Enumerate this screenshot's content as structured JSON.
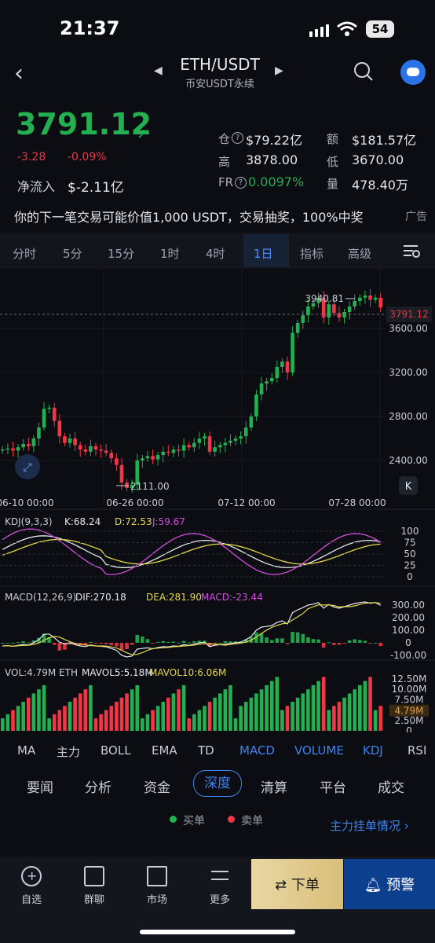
{
  "status_bar": {
    "time": "21:37",
    "battery": "54"
  },
  "header": {
    "pair": "ETH/USDT",
    "subtitle": "币安USDT永续"
  },
  "price": {
    "last": "3791.12",
    "change": "-3.28",
    "change_pct": "-0.09%",
    "net_inflow_label": "净流入",
    "net_inflow_value": "$-2.11亿"
  },
  "stats": {
    "oi_label": "仓",
    "oi_value": "$79.22亿",
    "vol_label": "额",
    "vol_value": "$181.57亿",
    "high_label": "高",
    "high_value": "3878.00",
    "low_label": "低",
    "low_value": "3670.00",
    "fr_label": "FR",
    "fr_value": "0.0097%",
    "qty_label": "量",
    "qty_value": "478.40万"
  },
  "banner": {
    "text": "你的下一笔交易可能价值1,000 USDT，交易抽奖，100%中奖",
    "ad": "广告"
  },
  "interval_tabs": [
    "分时",
    "5分",
    "15分",
    "1时",
    "4时",
    "1日",
    "指标",
    "高级"
  ],
  "colors": {
    "up": "#22b050",
    "down": "#f23645",
    "accent": "#3e84f0"
  },
  "chart_data": [
    {
      "type": "candlestick",
      "title": "",
      "x_ticks": [
        "06-10 00:00",
        "06-26 00:00",
        "07-12 00:00",
        "07-28 00:00"
      ],
      "y_ticks": [
        "3600.00",
        "3200.00",
        "2800.00",
        "2400.00"
      ],
      "ylim": [
        2000,
        4000
      ],
      "annotations": {
        "high": "3940.81",
        "low": "2111.00",
        "last": "3791.12"
      },
      "closes": [
        2500,
        2510,
        2490,
        2520,
        2550,
        2530,
        2600,
        2700,
        2870,
        2880,
        2760,
        2620,
        2560,
        2600,
        2540,
        2500,
        2480,
        2530,
        2500,
        2490,
        2470,
        2420,
        2360,
        2200,
        2150,
        2180,
        2400,
        2420,
        2440,
        2410,
        2450,
        2480,
        2470,
        2500,
        2490,
        2540,
        2520,
        2560,
        2600,
        2620,
        2480,
        2520,
        2540,
        2560,
        2580,
        2600,
        2620,
        2700,
        2800,
        3000,
        3100,
        3120,
        3150,
        3250,
        3300,
        3200,
        3560,
        3650,
        3720,
        3800,
        3830,
        3880,
        3700,
        3820,
        3740,
        3700,
        3750,
        3800,
        3850,
        3880,
        3900,
        3860,
        3880,
        3791
      ]
    },
    {
      "type": "line",
      "title": "KDJ(9,3,3)",
      "series": [
        {
          "name": "K",
          "label": "K:68.24"
        },
        {
          "name": "D",
          "label": "D:72.53"
        },
        {
          "name": "J",
          "label": "J:59.67"
        }
      ],
      "y_ticks": [
        "100",
        "75",
        "50",
        "25",
        "0"
      ]
    },
    {
      "type": "bar",
      "title": "MACD(12,26,9)",
      "series": [
        {
          "name": "DIF",
          "label": "DIF:270.18"
        },
        {
          "name": "DEA",
          "label": "DEA:281.90"
        },
        {
          "name": "MACD",
          "label": "MACD:-23.44"
        }
      ],
      "y_ticks": [
        "300.00",
        "200.00",
        "100.00",
        "0",
        "-100.00"
      ]
    },
    {
      "type": "bar",
      "title": "VOL:4.79M ETH",
      "series": [
        {
          "name": "MAVOL5",
          "label": "MAVOL5:5.18M"
        },
        {
          "name": "MAVOL10",
          "label": "MAVOL10:6.06M"
        }
      ],
      "y_ticks": [
        "12.50M",
        "10.00M",
        "7.50M",
        "4.79M",
        "2.50M",
        "0"
      ]
    }
  ],
  "indicator_tabs": [
    "MA",
    "主力",
    "BOLL",
    "EMA",
    "TD",
    "MACD",
    "VOLUME",
    "KDJ",
    "RSI"
  ],
  "section_tabs": [
    "要闻",
    "分析",
    "资金",
    "深度",
    "清算",
    "平台",
    "成交"
  ],
  "depth": {
    "buy_label": "买单",
    "sell_label": "卖单",
    "link": "主力挂单情况 ›"
  },
  "bottom_nav": [
    {
      "label": "自选",
      "icon": "plus-circle-icon"
    },
    {
      "label": "群聊",
      "icon": "chat-icon"
    },
    {
      "label": "市场",
      "icon": "chart-screen-icon"
    },
    {
      "label": "更多",
      "icon": "sliders-icon"
    }
  ],
  "actions": {
    "order": "⇄ 下单",
    "alert": "预警"
  }
}
